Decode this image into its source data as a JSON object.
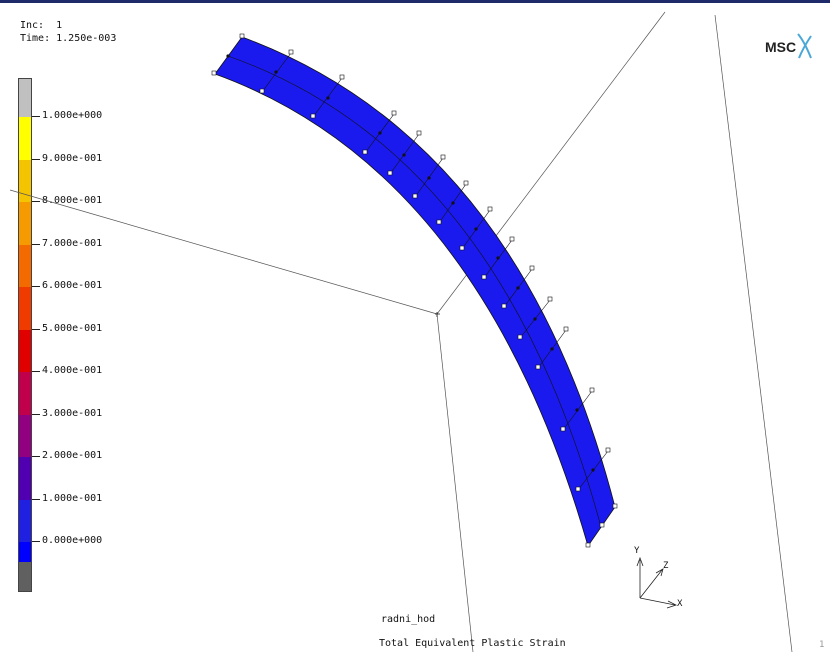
{
  "header": {
    "inc_label": "Inc:",
    "inc_value": "1",
    "time_label": "Time:",
    "time_value": "1.250e-003"
  },
  "logo_text": "MSC",
  "legend": {
    "labels": [
      "1.000e+000",
      "9.000e-001",
      "8.000e-001",
      "7.000e-001",
      "6.000e-001",
      "5.000e-001",
      "4.000e-001",
      "3.000e-001",
      "2.000e-001",
      "1.000e-001",
      "0.000e+000"
    ],
    "colors": [
      "#c0c0c0",
      "#ffff00",
      "#f5c400",
      "#f59a00",
      "#f36b00",
      "#f03b00",
      "#e00000",
      "#c0004a",
      "#900080",
      "#5000b0",
      "#2020e0",
      "#0000ff",
      "#606060"
    ]
  },
  "model": {
    "job_name": "radni_hod",
    "result_title": "Total Equivalent Plastic Strain",
    "page_number": "1"
  },
  "axes": {
    "x_label": "X",
    "y_label": "Y",
    "z_label": "Z"
  },
  "mesh_color": "#1a1aee"
}
